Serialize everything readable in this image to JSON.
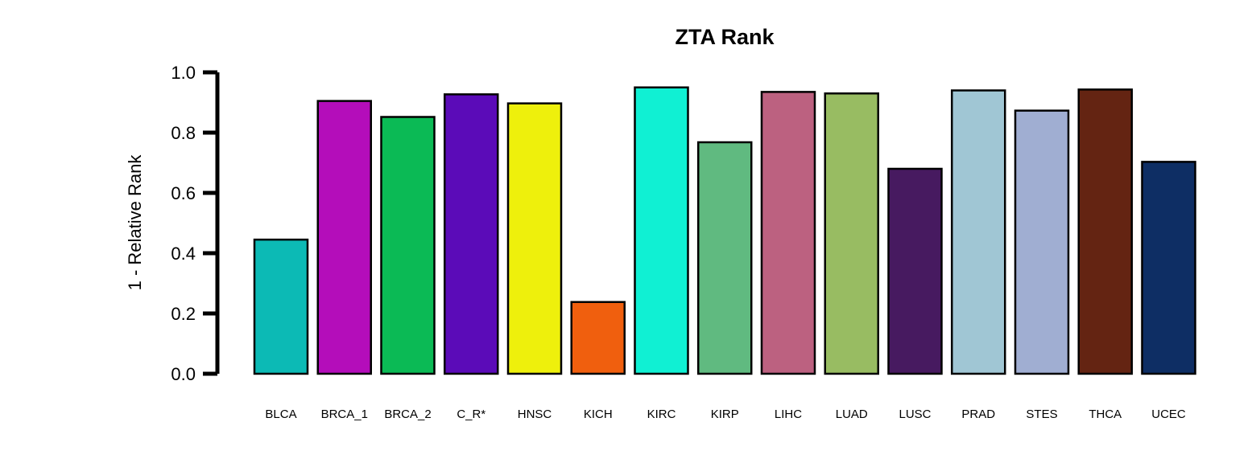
{
  "chart_data": {
    "type": "bar",
    "title": "ZTA Rank",
    "xlabel": "",
    "ylabel": "1 - Relative Rank",
    "ylim": [
      0,
      1.0
    ],
    "yticks": [
      "0.0",
      "0.2",
      "0.4",
      "0.6",
      "0.8",
      "1.0"
    ],
    "grid": false,
    "legend": "none",
    "categories": [
      "BLCA",
      "BRCA_1",
      "BRCA_2",
      "C_R*",
      "HNSC",
      "KICH",
      "KIRC",
      "KIRP",
      "LIHC",
      "LUAD",
      "LUSC",
      "PRAD",
      "STES",
      "THCA",
      "UCEC"
    ],
    "values": [
      0.445,
      0.905,
      0.852,
      0.927,
      0.897,
      0.238,
      0.95,
      0.768,
      0.935,
      0.93,
      0.68,
      0.94,
      0.873,
      0.943,
      0.703
    ],
    "colors": [
      "#0CBAB5",
      "#B40DBA",
      "#0BBA55",
      "#5B0BB8",
      "#EEF00C",
      "#F05F0E",
      "#10F0D3",
      "#60BA80",
      "#BC6180",
      "#98BC62",
      "#471A60",
      "#A0C6D4",
      "#A0AED2",
      "#642412",
      "#0E2E64"
    ]
  }
}
